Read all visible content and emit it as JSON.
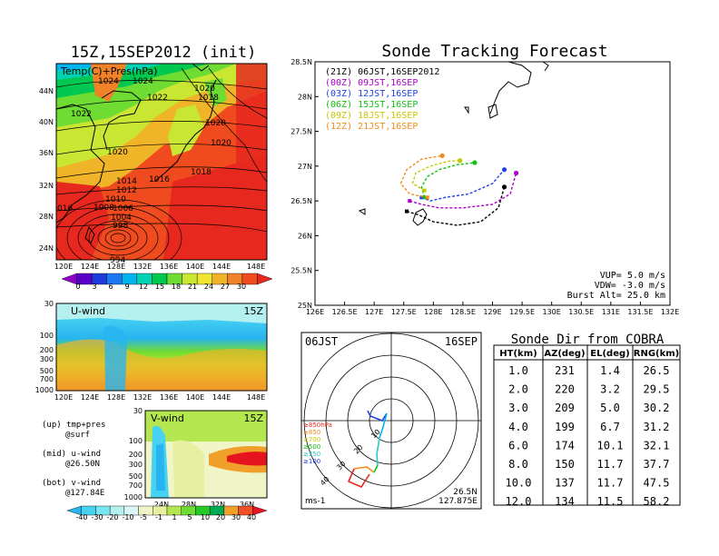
{
  "colors": {
    "temp_scale": [
      "#8c00c8",
      "#5a00c8",
      "#1e3cdc",
      "#1e78f0",
      "#00b4f0",
      "#00d2b4",
      "#00c850",
      "#6edc32",
      "#c8e632",
      "#f0e632",
      "#f0b428",
      "#f08228",
      "#f04b1e",
      "#e6281e"
    ],
    "wind_scale": [
      "#28b4f0",
      "#46d2f0",
      "#78e6f0",
      "#b4f0f0",
      "#dcf5f5",
      "#f0f5c8",
      "#e6f0a0",
      "#b4e650",
      "#6edc32",
      "#28c828",
      "#00aa50",
      "#f0a028",
      "#f05028",
      "#e6141e"
    ],
    "track": [
      "#000000",
      "#aa00cc",
      "#2040e8",
      "#10c010",
      "#c8c800",
      "#f08c20"
    ]
  },
  "left_panel": {
    "title": "15Z,15SEP2012 (init)",
    "map_label": "Temp(C)+Pres(hPa)",
    "map_ylabels": [
      "44N",
      "40N",
      "36N",
      "32N",
      "28N",
      "24N"
    ],
    "map_xlabels": [
      "120E",
      "124E",
      "128E",
      "132E",
      "136E",
      "140E",
      "144E",
      "148E"
    ],
    "isobar_labels": [
      "1024",
      "1024",
      "1022",
      "1020",
      "1018",
      "1022",
      "1020",
      "1020",
      "1020",
      "1018",
      "1016",
      "1014",
      "1012",
      "1010",
      "1008",
      "1006",
      "1004",
      "998",
      "994",
      "016"
    ],
    "temp_colorbar_labels": [
      "0",
      "3",
      "6",
      "9",
      "12",
      "15",
      "18",
      "21",
      "24",
      "27",
      "30"
    ],
    "u_panel": {
      "label": "U-wind",
      "time": "15Z",
      "ylabels": [
        "30",
        "100",
        "200",
        "300",
        "500",
        "700",
        "1000"
      ],
      "xlabels": [
        "120E",
        "124E",
        "128E",
        "132E",
        "136E",
        "140E",
        "144E",
        "148E"
      ]
    },
    "v_panel": {
      "label": "V-wind",
      "time": "15Z",
      "ylabels": [
        "30",
        "100",
        "200",
        "300",
        "500",
        "700",
        "1000"
      ],
      "xlabels": [
        "24N",
        "28N",
        "32N",
        "36N"
      ]
    },
    "notes": [
      {
        "line1": "(up) tmp+pres",
        "line2": "@surf"
      },
      {
        "line1": "(mid) u-wind",
        "line2": "@26.50N"
      },
      {
        "line1": "(bot) v-wind",
        "line2": "@127.84E"
      }
    ],
    "wind_colorbar_labels": [
      "-40",
      "-30",
      "-20",
      "-10",
      "-5",
      "-1",
      "1",
      "5",
      "10",
      "20",
      "30",
      "40"
    ]
  },
  "chart_data": [
    {
      "type": "line",
      "title": "Sonde Tracking Forecast",
      "xlim": [
        126,
        132
      ],
      "ylim": [
        25,
        28.5
      ],
      "x_ticks": [
        "126E",
        "126.5E",
        "127E",
        "127.5E",
        "128E",
        "128.5E",
        "129E",
        "129.5E",
        "130E",
        "130.5E",
        "131E",
        "131.5E",
        "132E"
      ],
      "y_ticks": [
        "25N",
        "25.5N",
        "26N",
        "26.5N",
        "27N",
        "27.5N",
        "28N",
        "28.5N"
      ],
      "legend": [
        "(21Z)  06JST,16SEP2012",
        "(00Z)  09JST,16SEP",
        "(03Z)  12JST,16SEP",
        "(06Z)  15JST,16SEP",
        "(09Z)  18JST,16SEP",
        "(12Z)  21JST,16SEP"
      ],
      "series": [
        {
          "name": "(21Z)  06JST,16SEP2012",
          "x": [
            127.55,
            127.75,
            128.0,
            128.4,
            128.8,
            129.1,
            129.2
          ],
          "y": [
            26.35,
            26.3,
            26.2,
            26.15,
            26.2,
            26.4,
            26.7
          ]
        },
        {
          "name": "(00Z)  09JST,16SEP",
          "x": [
            127.6,
            127.8,
            128.1,
            128.5,
            129.0,
            129.3,
            129.4
          ],
          "y": [
            26.5,
            26.45,
            26.4,
            26.4,
            26.45,
            26.6,
            26.9
          ]
        },
        {
          "name": "(03Z)  12JST,16SEP",
          "x": [
            127.8,
            127.95,
            128.2,
            128.6,
            129.0,
            129.2
          ],
          "y": [
            26.55,
            26.5,
            26.55,
            26.6,
            26.75,
            26.95
          ]
        },
        {
          "name": "(06Z)  15JST,16SEP",
          "x": [
            127.85,
            127.8,
            127.9,
            128.1,
            128.4,
            128.7
          ],
          "y": [
            26.55,
            26.7,
            26.85,
            26.95,
            27.02,
            27.05
          ]
        },
        {
          "name": "(09Z)  18JST,16SEP",
          "x": [
            127.85,
            127.65,
            127.7,
            127.95,
            128.25,
            128.45
          ],
          "y": [
            26.65,
            26.75,
            26.9,
            27.0,
            27.07,
            27.08
          ]
        },
        {
          "name": "(12Z)  21JST,16SEP",
          "x": [
            127.9,
            127.6,
            127.45,
            127.55,
            127.8,
            128.15
          ],
          "y": [
            26.55,
            26.6,
            26.75,
            26.95,
            27.1,
            27.15
          ]
        }
      ],
      "annotations": [
        "VUP=  5.0 m/s",
        "VDW= -3.0 m/s",
        "Burst Alt= 25.0 km"
      ]
    },
    {
      "type": "line",
      "title": "06JST",
      "title_right": "16SEP",
      "legend": [
        "≥850hPa",
        "≥850",
        "≥700",
        "≥500",
        "≥250",
        "≥100"
      ],
      "ring_labels": [
        "10",
        "20",
        "30",
        "40"
      ],
      "footer_left": "ms-1",
      "footer_right_1": "26.5N",
      "footer_right_2": "127.875E"
    },
    {
      "type": "table",
      "title": "Sonde Dir from COBRA",
      "columns": [
        "HT(km)",
        "AZ(deg)",
        "EL(deg)",
        "RNG(km)"
      ],
      "rows": [
        [
          "1.0",
          "231",
          "1.4",
          "26.5"
        ],
        [
          "2.0",
          "220",
          "3.2",
          "29.5"
        ],
        [
          "3.0",
          "209",
          "5.0",
          "30.2"
        ],
        [
          "4.0",
          "199",
          "6.7",
          "31.2"
        ],
        [
          "6.0",
          "174",
          "10.1",
          "32.1"
        ],
        [
          "8.0",
          "150",
          "11.7",
          "37.7"
        ],
        [
          "10.0",
          "137",
          "11.7",
          "47.5"
        ],
        [
          "12.0",
          "134",
          "11.5",
          "58.2"
        ]
      ]
    }
  ]
}
